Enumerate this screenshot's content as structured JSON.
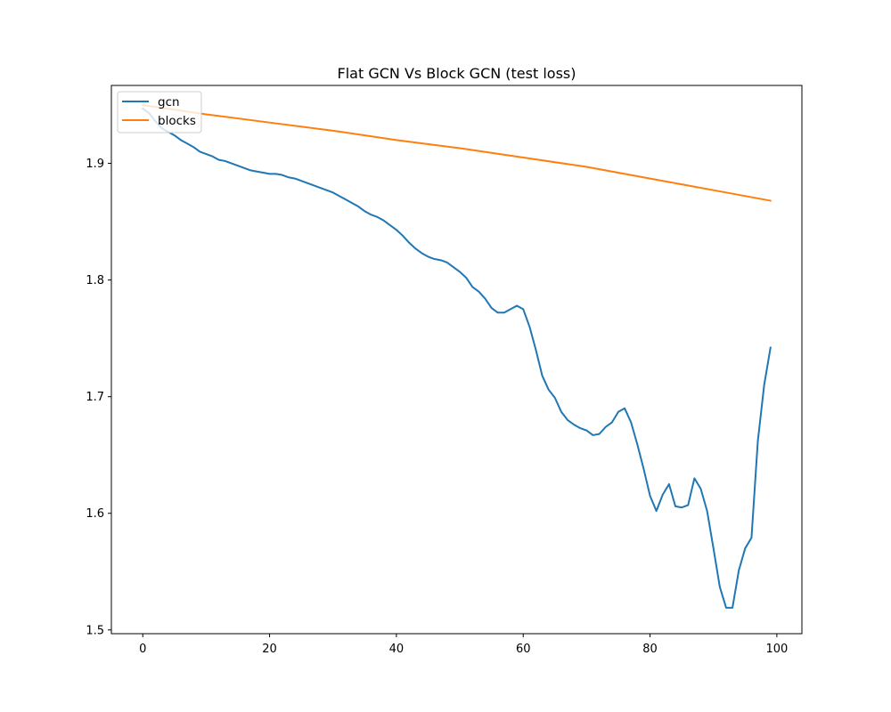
{
  "chart_data": {
    "type": "line",
    "title": "Flat GCN Vs Block GCN (test loss)",
    "xlabel": "",
    "ylabel": "",
    "xlim": [
      -4.95,
      103.95
    ],
    "ylim": [
      1.4968,
      1.9668
    ],
    "xticks": [
      0,
      20,
      40,
      60,
      80,
      100
    ],
    "yticks": [
      1.5,
      1.6,
      1.7,
      1.8,
      1.9
    ],
    "grid": false,
    "legend_position": "upper-left",
    "series": [
      {
        "name": "gcn",
        "color": "#1f77b4",
        "x": [
          0,
          1,
          2,
          3,
          4,
          5,
          6,
          7,
          8,
          9,
          10,
          11,
          12,
          13,
          14,
          15,
          16,
          17,
          18,
          19,
          20,
          21,
          22,
          23,
          24,
          25,
          26,
          27,
          28,
          29,
          30,
          31,
          32,
          33,
          34,
          35,
          36,
          37,
          38,
          39,
          40,
          41,
          42,
          43,
          44,
          45,
          46,
          47,
          48,
          49,
          50,
          51,
          52,
          53,
          54,
          55,
          56,
          57,
          58,
          59,
          60,
          61,
          62,
          63,
          64,
          65,
          66,
          67,
          68,
          69,
          70,
          71,
          72,
          73,
          74,
          75,
          76,
          77,
          78,
          79,
          80,
          81,
          82,
          83,
          84,
          85,
          86,
          87,
          88,
          89,
          90,
          91,
          92,
          93,
          94,
          95,
          96,
          97,
          98,
          99
        ],
        "values": [
          1.947,
          1.943,
          1.936,
          1.93,
          1.927,
          1.924,
          1.92,
          1.917,
          1.914,
          1.91,
          1.908,
          1.906,
          1.903,
          1.902,
          1.9,
          1.898,
          1.896,
          1.894,
          1.893,
          1.892,
          1.891,
          1.891,
          1.89,
          1.888,
          1.887,
          1.885,
          1.883,
          1.881,
          1.879,
          1.877,
          1.875,
          1.872,
          1.869,
          1.866,
          1.863,
          1.859,
          1.856,
          1.854,
          1.851,
          1.847,
          1.843,
          1.838,
          1.832,
          1.827,
          1.823,
          1.82,
          1.818,
          1.817,
          1.815,
          1.811,
          1.807,
          1.802,
          1.794,
          1.79,
          1.784,
          1.776,
          1.772,
          1.772,
          1.775,
          1.778,
          1.775,
          1.76,
          1.74,
          1.718,
          1.706,
          1.699,
          1.687,
          1.68,
          1.676,
          1.673,
          1.671,
          1.667,
          1.668,
          1.674,
          1.678,
          1.687,
          1.69,
          1.678,
          1.659,
          1.638,
          1.615,
          1.602,
          1.616,
          1.625,
          1.606,
          1.605,
          1.607,
          1.63,
          1.621,
          1.602,
          1.57,
          1.537,
          1.519,
          1.519,
          1.551,
          1.57,
          1.579,
          1.662,
          1.71,
          1.742
        ]
      },
      {
        "name": "blocks",
        "color": "#ff7f0e",
        "x": [
          0,
          10,
          20,
          30,
          40,
          50,
          60,
          70,
          80,
          90,
          99
        ],
        "values": [
          1.95,
          1.942,
          1.935,
          1.928,
          1.92,
          1.913,
          1.905,
          1.897,
          1.887,
          1.877,
          1.868
        ]
      }
    ]
  }
}
